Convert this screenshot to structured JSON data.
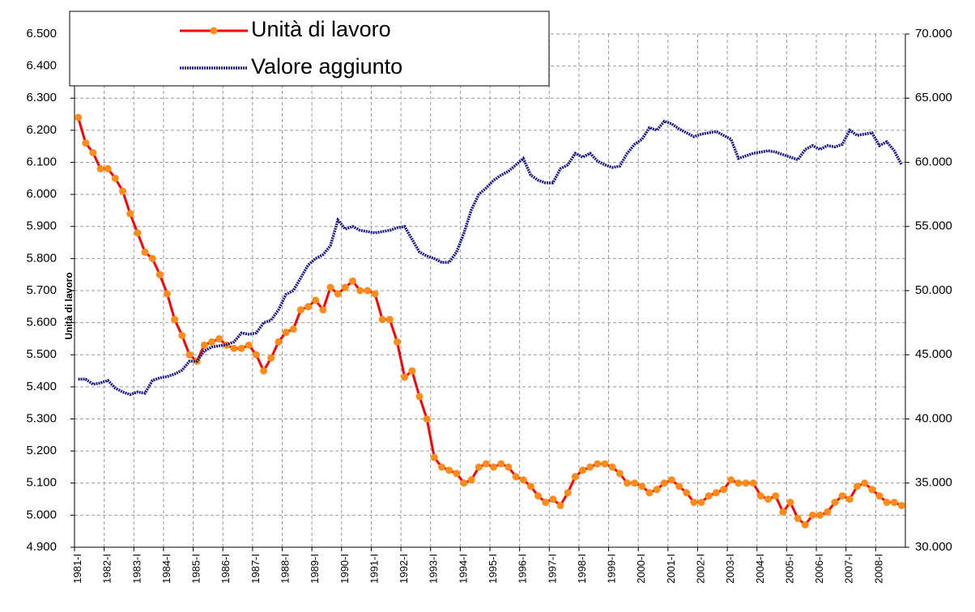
{
  "chart_data": {
    "type": "line",
    "ylabel": "Unità di lavoro",
    "legend": "upper left",
    "grid": true,
    "categories": [
      "1981-I",
      null,
      null,
      null,
      "1982-I",
      null,
      null,
      null,
      "1983-I",
      null,
      null,
      null,
      "1984-I",
      null,
      null,
      null,
      "1985-I",
      null,
      null,
      null,
      "1986-I",
      null,
      null,
      null,
      "1987-I",
      null,
      null,
      null,
      "1988-I",
      null,
      null,
      null,
      "1989-I",
      null,
      null,
      null,
      "1990-I",
      null,
      null,
      null,
      "1991-I",
      null,
      null,
      null,
      "1992-I",
      null,
      null,
      null,
      "1993-I",
      null,
      null,
      null,
      "1994-I",
      null,
      null,
      null,
      "1995-I",
      null,
      null,
      null,
      "1996-I",
      null,
      null,
      null,
      "1997-I",
      null,
      null,
      null,
      "1998-I",
      null,
      null,
      null,
      "1999-I",
      null,
      null,
      null,
      "2000-I",
      null,
      null,
      null,
      "2001-I",
      null,
      null,
      null,
      "2002-I",
      null,
      null,
      null,
      "2003-I",
      null,
      null,
      null,
      "2004-I",
      null,
      null,
      null,
      "2005-I",
      null,
      null,
      null,
      "2006-I",
      null,
      null,
      null,
      "2007-I",
      null,
      null,
      null,
      "2008-I",
      null,
      null,
      null
    ],
    "series": [
      {
        "name": "Unità di lavoro",
        "color": "#ff8c1a",
        "line_color": "#ff0000",
        "values": [
          6240,
          6160,
          6130,
          6080,
          6080,
          6050,
          6010,
          5940,
          5880,
          5820,
          5800,
          5750,
          5690,
          5610,
          5560,
          5500,
          5480,
          5530,
          5540,
          5550,
          5530,
          5520,
          5520,
          5530,
          5500,
          5450,
          5490,
          5540,
          5570,
          5580,
          5640,
          5650,
          5670,
          5640,
          5710,
          5690,
          5710,
          5730,
          5700,
          5700,
          5690,
          5610,
          5610,
          5540,
          5430,
          5450,
          5370,
          5300,
          5180,
          5150,
          5140,
          5130,
          5100,
          5110,
          5150,
          5160,
          5150,
          5160,
          5150,
          5120,
          5110,
          5090,
          5060,
          5040,
          5050,
          5030,
          5070,
          5120,
          5140,
          5150,
          5160,
          5160,
          5150,
          5130,
          5100,
          5100,
          5090,
          5070,
          5080,
          5100,
          5110,
          5090,
          5070,
          5040,
          5040,
          5060,
          5070,
          5080,
          5110,
          5100,
          5100,
          5100,
          5060,
          5050,
          5060,
          5010,
          5040,
          4990,
          4970,
          5000,
          5000,
          5010,
          5040,
          5060,
          5050,
          5090,
          5100,
          5080,
          5060,
          5040,
          5040,
          5030
        ]
      },
      {
        "name": "Valore aggiunto",
        "color": "#1a1a8c",
        "axis": "y2",
        "values": [
          43100,
          43100,
          42700,
          42800,
          43000,
          42400,
          42100,
          41900,
          42100,
          42000,
          43000,
          43200,
          43300,
          43500,
          43800,
          44500,
          44500,
          45300,
          45600,
          45700,
          45800,
          46000,
          46700,
          46600,
          46700,
          47500,
          47700,
          48500,
          49700,
          50000,
          51000,
          52000,
          52500,
          52800,
          53500,
          55500,
          54800,
          55000,
          54700,
          54600,
          54500,
          54600,
          54700,
          54900,
          55000,
          54000,
          53000,
          52700,
          52500,
          52200,
          52200,
          53000,
          54500,
          56300,
          57500,
          58000,
          58600,
          59000,
          59300,
          59800,
          60300,
          59000,
          58600,
          58400,
          58400,
          59500,
          59800,
          60700,
          60400,
          60700,
          60100,
          59800,
          59600,
          59700,
          60700,
          61400,
          61800,
          62700,
          62500,
          63200,
          63000,
          62600,
          62300,
          62000,
          62200,
          62300,
          62400,
          62100,
          61800,
          60300,
          60500,
          60700,
          60800,
          60900,
          60800,
          60600,
          60400,
          60200,
          61000,
          61300,
          61000,
          61300,
          61200,
          61400,
          62500,
          62100,
          62200,
          62300,
          61300,
          61600,
          60900,
          59800
        ]
      }
    ],
    "ylim": [
      4900,
      6500
    ],
    "yticks": [
      {
        "value": 4900,
        "label": "4.900"
      },
      {
        "value": 5000,
        "label": "5.000"
      },
      {
        "value": 5100,
        "label": "5.100"
      },
      {
        "value": 5200,
        "label": "5.200"
      },
      {
        "value": 5300,
        "label": "5.300"
      },
      {
        "value": 5400,
        "label": "5.400"
      },
      {
        "value": 5500,
        "label": "5.500"
      },
      {
        "value": 5600,
        "label": "5.600"
      },
      {
        "value": 5700,
        "label": "5.700"
      },
      {
        "value": 5800,
        "label": "5.800"
      },
      {
        "value": 5900,
        "label": "5.900"
      },
      {
        "value": 6000,
        "label": "6.000"
      },
      {
        "value": 6100,
        "label": "6.100"
      },
      {
        "value": 6200,
        "label": "6.200"
      },
      {
        "value": 6300,
        "label": "6.300"
      },
      {
        "value": 6400,
        "label": "6.400"
      },
      {
        "value": 6500,
        "label": "6.500"
      }
    ],
    "y2lim": [
      30000,
      70000
    ],
    "y2ticks": [
      {
        "value": 30000,
        "label": "30.000"
      },
      {
        "value": 35000,
        "label": "35.000"
      },
      {
        "value": 40000,
        "label": "40.000"
      },
      {
        "value": 45000,
        "label": "45.000"
      },
      {
        "value": 50000,
        "label": "50.000"
      },
      {
        "value": 55000,
        "label": "55.000"
      },
      {
        "value": 60000,
        "label": "60.000"
      },
      {
        "value": 65000,
        "label": "65.000"
      },
      {
        "value": 70000,
        "label": "70.000"
      }
    ]
  }
}
